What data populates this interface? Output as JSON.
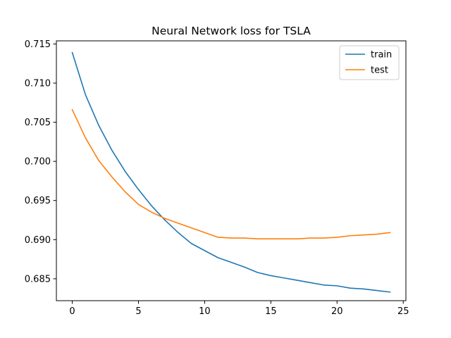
{
  "chart_data": {
    "type": "line",
    "title": "Neural Network loss for TSLA",
    "xlabel": "",
    "ylabel": "",
    "xlim": [
      -1.2,
      25.2
    ],
    "ylim": [
      0.6822,
      0.7154
    ],
    "xticks": [
      0,
      5,
      10,
      15,
      20,
      25
    ],
    "yticks": [
      0.685,
      0.69,
      0.695,
      0.7,
      0.705,
      0.71,
      0.715
    ],
    "xtick_labels": [
      "0",
      "5",
      "10",
      "15",
      "20",
      "25"
    ],
    "ytick_labels": [
      "0.685",
      "0.690",
      "0.695",
      "0.700",
      "0.705",
      "0.710",
      "0.715"
    ],
    "grid": false,
    "legend_position": "top-right",
    "x": [
      0,
      1,
      2,
      3,
      4,
      5,
      6,
      7,
      8,
      9,
      10,
      11,
      12,
      13,
      14,
      15,
      16,
      17,
      18,
      19,
      20,
      21,
      22,
      23,
      24
    ],
    "series": [
      {
        "name": "train",
        "color": "#1f77b4",
        "values": [
          0.7139,
          0.7085,
          0.7046,
          0.7014,
          0.6987,
          0.6964,
          0.6943,
          0.6925,
          0.6909,
          0.6895,
          0.6886,
          0.6877,
          0.6871,
          0.6865,
          0.6858,
          0.6854,
          0.6851,
          0.6848,
          0.6845,
          0.6842,
          0.6841,
          0.6838,
          0.6837,
          0.6835,
          0.6833
        ]
      },
      {
        "name": "test",
        "color": "#ff7f0e",
        "values": [
          0.7066,
          0.703,
          0.7001,
          0.698,
          0.6961,
          0.6945,
          0.6935,
          0.6927,
          0.6921,
          0.6915,
          0.6909,
          0.6903,
          0.6902,
          0.6902,
          0.6901,
          0.6901,
          0.6901,
          0.6901,
          0.6902,
          0.6902,
          0.6903,
          0.6905,
          0.6906,
          0.6907,
          0.6909
        ]
      }
    ]
  }
}
